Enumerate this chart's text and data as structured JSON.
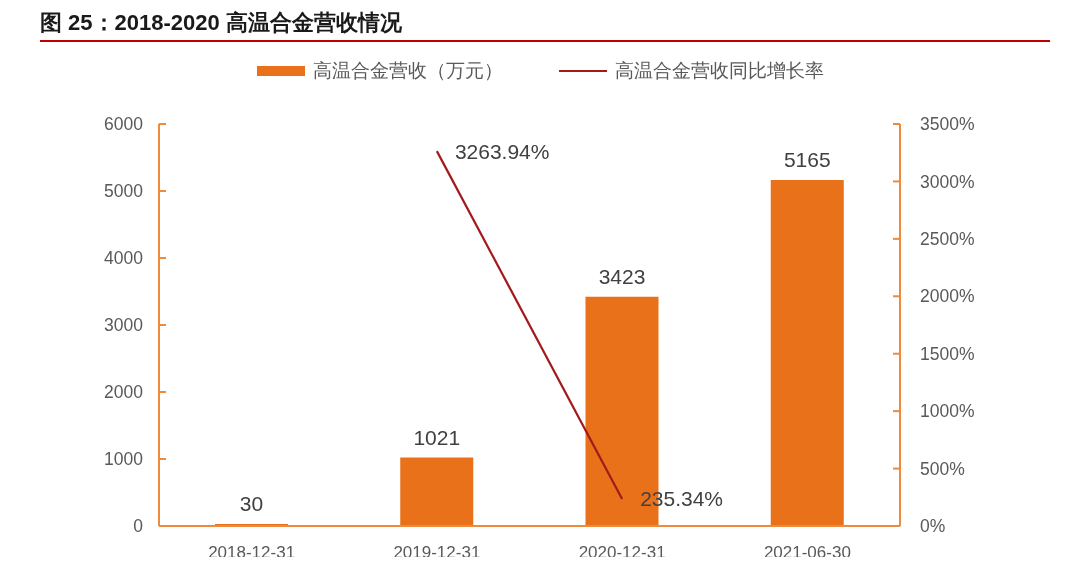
{
  "chart_data": {
    "type": "bar",
    "title": "图 25：2018-2020 高温合金营收情况",
    "categories": [
      "2018-12-31",
      "2019-12-31",
      "2020-12-31",
      "2021-06-30"
    ],
    "series": [
      {
        "name": "高温合金营收（万元）",
        "color": "#e8711a",
        "values": [
          30,
          1021,
          3423,
          5165
        ],
        "value_labels": [
          "30",
          "1021",
          "3423",
          "5165"
        ]
      },
      {
        "name": "高温合金营收同比增长率",
        "type": "line",
        "axis": "y2",
        "color": "#a31a1d",
        "marker": "none",
        "values": [
          null,
          3263.94,
          235.34,
          null
        ],
        "value_labels": [
          null,
          "3263.94%",
          "235.34%",
          null
        ]
      }
    ],
    "ylim": [
      0,
      6000
    ],
    "yticks": [
      0,
      1000,
      2000,
      3000,
      4000,
      5000,
      6000
    ],
    "y2lim": [
      0,
      3500
    ],
    "y2ticks": [
      {
        "value": 0,
        "label": "0%"
      },
      {
        "value": 500,
        "label": "500%"
      },
      {
        "value": 1000,
        "label": "1000%"
      },
      {
        "value": 1500,
        "label": "1500%"
      },
      {
        "value": 2000,
        "label": "2000%"
      },
      {
        "value": 2500,
        "label": "2500%"
      },
      {
        "value": 3000,
        "label": "3000%"
      },
      {
        "value": 3500,
        "label": "3500%"
      }
    ],
    "legend": "top"
  }
}
